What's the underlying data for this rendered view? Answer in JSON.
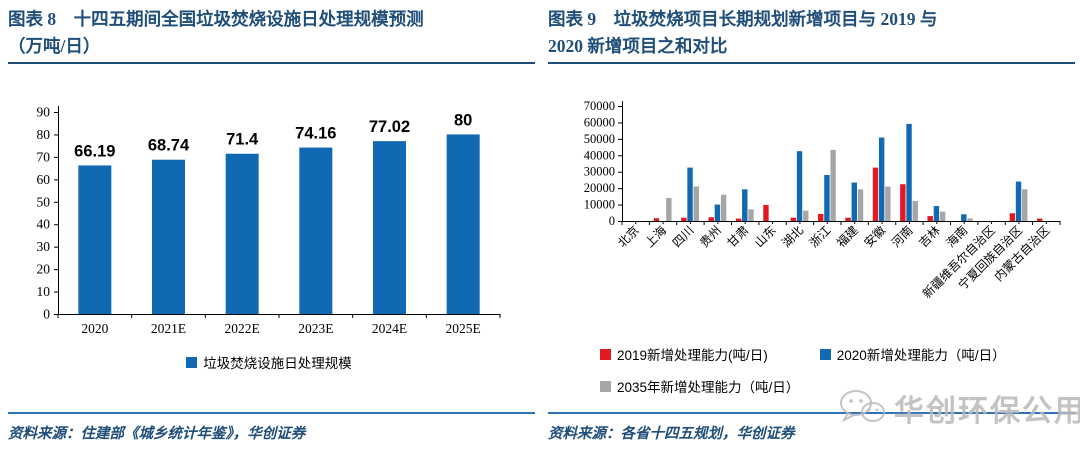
{
  "figures": [
    {
      "label": "图表 8",
      "title_line1": "图表 8　十四五期间全国垃圾焚烧设施日处理规模预测",
      "title_line2": "（万吨/日）",
      "source": "资料来源：住建部《城乡统计年鉴》，华创证券"
    },
    {
      "label": "图表 9",
      "title_line1": "图表 9　垃圾焚烧项目长期规划新增项目与 2019 与",
      "title_line2": "2020 新增项目之和对比",
      "source": "资料来源：各省十四五规划，华创证券"
    }
  ],
  "watermark": {
    "text": "华创环保公用",
    "icon": "wechat-icon"
  },
  "colors": {
    "title_blue": "#1F4E79",
    "rule_blue": "#2E74B5",
    "bar_blue": "#1169B4",
    "bar_red": "#E01A20",
    "bar_gray": "#A6A6A6"
  },
  "chart_data": [
    {
      "type": "bar",
      "title": "十四五期间全国垃圾焚烧设施日处理规模预测（万吨/日）",
      "categories": [
        "2020",
        "2021E",
        "2022E",
        "2023E",
        "2024E",
        "2025E"
      ],
      "values": [
        66.19,
        68.74,
        71.4,
        74.16,
        77.02,
        80
      ],
      "data_labels": [
        "66.19",
        "68.74",
        "71.4",
        "74.16",
        "77.02",
        "80"
      ],
      "xlabel": "",
      "ylabel": "",
      "ylim": [
        0,
        90
      ],
      "ytick_step": 10,
      "grid": false,
      "legend_position": "bottom",
      "legend": [
        {
          "label": "垃圾焚烧设施日处理规模",
          "color": "#1169B4"
        }
      ]
    },
    {
      "type": "bar",
      "title": "垃圾焚烧项目长期规划新增项目与2019与2020新增项目之和对比",
      "categories": [
        "北京",
        "上海",
        "四川",
        "贵州",
        "甘肃",
        "山东",
        "湖北",
        "浙江",
        "福建",
        "安徽",
        "河南",
        "吉林",
        "海南",
        "新疆维吾尔自治区",
        "宁夏回族自治区",
        "内蒙古自治区"
      ],
      "series": [
        {
          "name": "2019新增处理能力(吨/日)",
          "color": "#E01A20",
          "values": [
            0,
            1700,
            2000,
            2300,
            1500,
            9800,
            2000,
            4300,
            2000,
            32500,
            22400,
            3000,
            0,
            0,
            4700,
            1500
          ]
        },
        {
          "name": "2020新增处理能力（吨/日）",
          "color": "#1169B4",
          "values": [
            0,
            0,
            32500,
            10000,
            19300,
            0,
            42500,
            28000,
            23400,
            50800,
            59100,
            9100,
            4100,
            0,
            24000,
            0
          ]
        },
        {
          "name": "2035年新增处理能力（吨/日）",
          "color": "#A6A6A6",
          "values": [
            0,
            14000,
            21000,
            16000,
            7100,
            0,
            6300,
            43300,
            19300,
            21000,
            12200,
            5700,
            1600,
            0,
            19300,
            0
          ]
        }
      ],
      "xlabel": "",
      "ylabel": "",
      "ylim": [
        0,
        70000
      ],
      "ytick_step": 10000,
      "grid": false,
      "legend_position": "bottom",
      "x_tick_label_rotation": -45
    }
  ]
}
